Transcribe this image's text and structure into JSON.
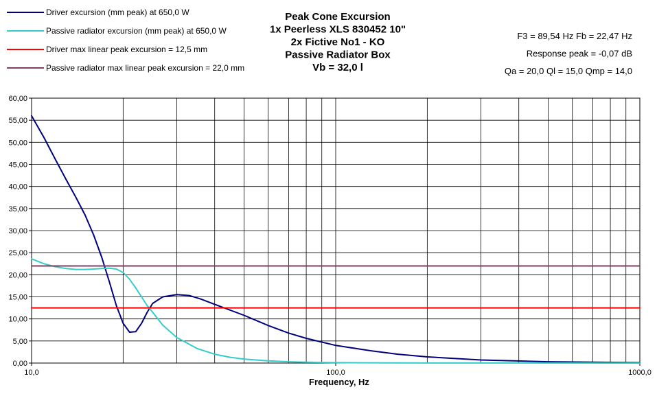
{
  "chart_data": {
    "type": "line",
    "title_lines": [
      "Peak Cone Excursion",
      "1x Peerless XLS 830452 10\"",
      "2x Fictive No1 - KO",
      "Passive Radiator Box",
      "Vb = 32,0 l"
    ],
    "info_lines": [
      "F3 = 89,54 Hz  Fb = 22,47 Hz",
      "Response peak = -0,07 dB",
      "Qa = 20,0  Ql = 15,0  Qmp = 14,0"
    ],
    "xlabel": "Frequency,  Hz",
    "ylabel": "",
    "x_scale": "log",
    "xlim": [
      10,
      1000
    ],
    "ylim": [
      0,
      60
    ],
    "y_ticks": [
      0,
      5,
      10,
      15,
      20,
      25,
      30,
      35,
      40,
      45,
      50,
      55,
      60
    ],
    "y_tick_labels": [
      "0,00",
      "5,00",
      "10,00",
      "15,00",
      "20,00",
      "25,00",
      "30,00",
      "35,00",
      "40,00",
      "45,00",
      "50,00",
      "55,00",
      "60,00"
    ],
    "x_tick_labels": [
      {
        "x": 10,
        "label": "10,0"
      },
      {
        "x": 100,
        "label": "100,0"
      },
      {
        "x": 1000,
        "label": "1000,0"
      }
    ],
    "x_gridlines": [
      20,
      30,
      40,
      50,
      60,
      70,
      80,
      90,
      100,
      200,
      300,
      400,
      500,
      600,
      700,
      800,
      900
    ],
    "grid": true,
    "legend_position": "top-left",
    "series": [
      {
        "name": "Driver excursion (mm peak) at 650,0 W",
        "color": "#00007f",
        "points": [
          [
            10,
            56
          ],
          [
            11,
            51
          ],
          [
            12,
            46
          ],
          [
            13,
            41.5
          ],
          [
            14,
            37.5
          ],
          [
            15,
            33.5
          ],
          [
            16,
            29
          ],
          [
            17,
            24
          ],
          [
            18,
            18.5
          ],
          [
            19,
            13
          ],
          [
            20,
            9
          ],
          [
            21,
            7
          ],
          [
            22,
            7.1
          ],
          [
            23,
            9
          ],
          [
            24,
            11.5
          ],
          [
            25,
            13.5
          ],
          [
            27,
            15
          ],
          [
            30,
            15.5
          ],
          [
            33,
            15.3
          ],
          [
            36,
            14.5
          ],
          [
            40,
            13.3
          ],
          [
            50,
            10.8
          ],
          [
            60,
            8.5
          ],
          [
            70,
            6.8
          ],
          [
            80,
            5.6
          ],
          [
            100,
            4
          ],
          [
            130,
            2.8
          ],
          [
            160,
            2
          ],
          [
            200,
            1.4
          ],
          [
            300,
            0.7
          ],
          [
            500,
            0.3
          ],
          [
            700,
            0.2
          ],
          [
            1000,
            0.1
          ]
        ]
      },
      {
        "name": "Passive radiator excursion (mm peak) at 650,0 W",
        "color": "#33cccc",
        "points": [
          [
            10,
            23.6
          ],
          [
            11,
            22.5
          ],
          [
            12,
            21.8
          ],
          [
            13,
            21.4
          ],
          [
            14,
            21.2
          ],
          [
            15,
            21.2
          ],
          [
            16,
            21.3
          ],
          [
            17,
            21.4
          ],
          [
            18,
            21.5
          ],
          [
            19,
            21.3
          ],
          [
            20,
            20.5
          ],
          [
            21,
            19
          ],
          [
            22,
            17
          ],
          [
            23,
            15
          ],
          [
            24,
            13
          ],
          [
            25,
            11.5
          ],
          [
            27,
            8.6
          ],
          [
            30,
            5.8
          ],
          [
            35,
            3.3
          ],
          [
            40,
            2
          ],
          [
            45,
            1.3
          ],
          [
            50,
            0.9
          ],
          [
            60,
            0.5
          ],
          [
            70,
            0.3
          ],
          [
            80,
            0.2
          ],
          [
            100,
            0.1
          ],
          [
            150,
            0.05
          ],
          [
            200,
            0.02
          ],
          [
            300,
            0.01
          ],
          [
            1000,
            0
          ]
        ]
      },
      {
        "name": "Driver max linear peak excursion = 12,5 mm",
        "color": "#ff0000",
        "points": [
          [
            10,
            12.5
          ],
          [
            1000,
            12.5
          ]
        ]
      },
      {
        "name": "Passive radiator max linear peak excursion = 22,0 mm",
        "color": "#7f3f5f",
        "points": [
          [
            10,
            22
          ],
          [
            1000,
            22
          ]
        ]
      }
    ]
  }
}
